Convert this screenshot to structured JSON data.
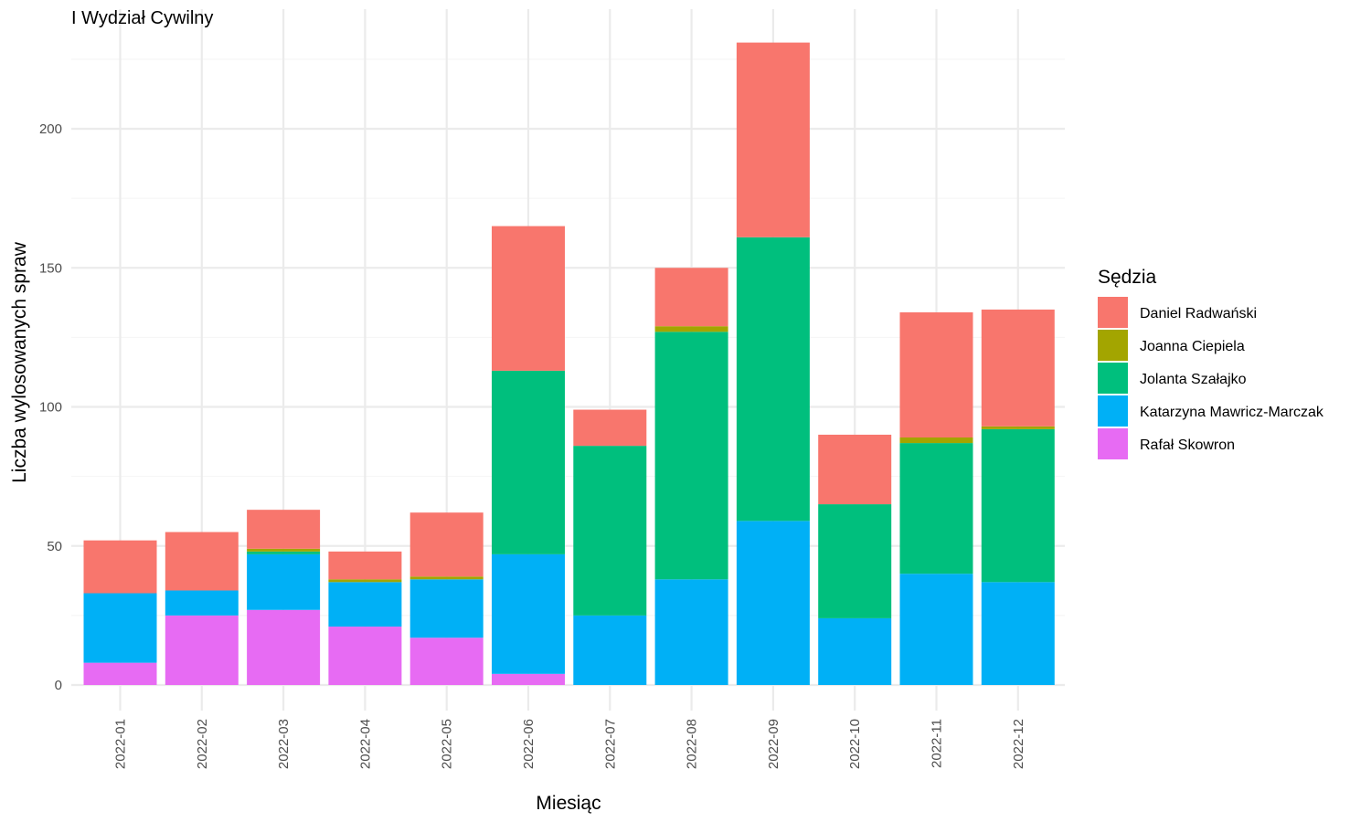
{
  "chart_data": {
    "type": "bar",
    "stacked": true,
    "title": "I Wydział Cywilny",
    "xlabel": "Miesiąc",
    "ylabel": "Liczba wylosowanych spraw",
    "ylim": [
      0,
      231
    ],
    "yticks": [
      0,
      50,
      100,
      150,
      200
    ],
    "ytick_labels": [
      "0",
      "50",
      "100",
      "150",
      "200"
    ],
    "grid": true,
    "legend_position": "right",
    "legend_title": "Sędzia",
    "categories": [
      "2022-01",
      "2022-02",
      "2022-03",
      "2022-04",
      "2022-05",
      "2022-06",
      "2022-07",
      "2022-08",
      "2022-09",
      "2022-10",
      "2022-11",
      "2022-12"
    ],
    "stack_order_bottom_to_top": [
      "Rafał Skowron",
      "Katarzyna Mawricz-Marczak",
      "Jolanta Szałajko",
      "Joanna Ciepiela",
      "Daniel Radwański"
    ],
    "series": [
      {
        "name": "Daniel Radwański",
        "color": "#F8766D",
        "values": [
          19,
          21,
          14,
          10,
          23,
          52,
          13,
          21,
          70,
          25,
          45,
          42
        ]
      },
      {
        "name": "Joanna Ciepiela",
        "color": "#A3A500",
        "values": [
          0,
          0,
          1,
          1,
          1,
          0,
          0,
          2,
          0,
          0,
          2,
          1
        ]
      },
      {
        "name": "Jolanta Szałajko",
        "color": "#00BF7D",
        "values": [
          0,
          0,
          1,
          0,
          0,
          66,
          61,
          89,
          102,
          41,
          47,
          55
        ]
      },
      {
        "name": "Katarzyna Mawricz-Marczak",
        "color": "#00B0F6",
        "values": [
          25,
          9,
          20,
          16,
          21,
          43,
          25,
          38,
          59,
          24,
          40,
          37
        ]
      },
      {
        "name": "Rafał Skowron",
        "color": "#E76BF3",
        "values": [
          8,
          25,
          27,
          21,
          17,
          4,
          0,
          0,
          0,
          0,
          0,
          0
        ]
      }
    ]
  }
}
